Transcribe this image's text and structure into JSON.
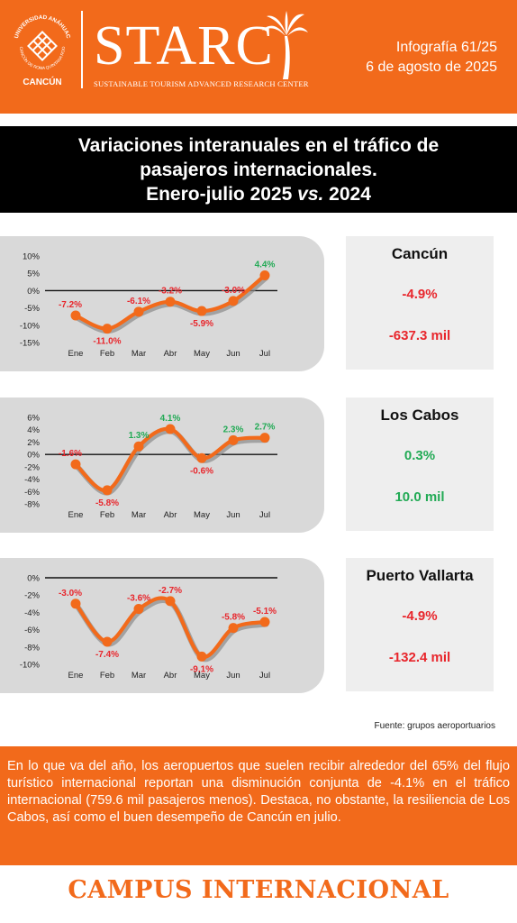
{
  "header": {
    "university_arc_text": "UNIVERSIDAD ANÁHUAC",
    "university_arc_text_bottom": "CANCÚN DE ROMA QUINTANA ROO",
    "university_city": "CANCÚN",
    "brand": "STARC",
    "brand_tagline": "SUSTAINABLE TOURISM ADVANCED RESEARCH CENTER",
    "infographic_number": "Infografía 61/25",
    "date": "6 de agosto de 2025"
  },
  "title": {
    "line1": "Variaciones interanuales en el tráfico de",
    "line2": "pasajeros internacionales.",
    "line3_prefix": "Enero-julio 2025 ",
    "line3_vs": "vs.",
    "line3_suffix": " 2024"
  },
  "colors": {
    "brand_orange": "#f26a1b",
    "line_orange": "#f26a1b",
    "line_shadow": "#8a8a8a",
    "negative_red": "#e8262c",
    "positive_green": "#22aa55",
    "panel_gray": "#d9d9d9",
    "stat_gray": "#eeeeee"
  },
  "chart_data": [
    {
      "type": "line",
      "name": "Cancún",
      "categories": [
        "Ene",
        "Feb",
        "Mar",
        "Abr",
        "May",
        "Jun",
        "Jul"
      ],
      "values": [
        -7.2,
        -11.0,
        -6.1,
        -3.2,
        -5.9,
        -3.0,
        4.4
      ],
      "data_labels": [
        "-7.2%",
        "-11.0%",
        "-6.1%",
        "-3.2%",
        "-5.9%",
        "-3.0%",
        "4.4%"
      ],
      "ylim": [
        -15,
        10
      ],
      "yticks": [
        10,
        5,
        0,
        -5,
        -10,
        -15
      ],
      "ytick_labels": [
        "10%",
        "5%",
        "0%",
        "-5%",
        "-10%",
        "-15%"
      ]
    },
    {
      "type": "line",
      "name": "Los Cabos",
      "categories": [
        "Ene",
        "Feb",
        "Mar",
        "Abr",
        "May",
        "Jun",
        "Jul"
      ],
      "values": [
        -1.6,
        -5.8,
        1.3,
        4.1,
        -0.6,
        2.3,
        2.7
      ],
      "data_labels": [
        "-1.6%",
        "-5.8%",
        "1.3%",
        "4.1%",
        "-0.6%",
        "2.3%",
        "2.7%"
      ],
      "ylim": [
        -8,
        6
      ],
      "yticks": [
        6,
        4,
        2,
        0,
        -2,
        -4,
        -6,
        -8
      ],
      "ytick_labels": [
        "6%",
        "4%",
        "2%",
        "0%",
        "-2%",
        "-4%",
        "-6%",
        "-8%"
      ]
    },
    {
      "type": "line",
      "name": "Puerto Vallarta",
      "categories": [
        "Ene",
        "Feb",
        "Mar",
        "Abr",
        "May",
        "Jun",
        "Jul"
      ],
      "values": [
        -3.0,
        -7.4,
        -3.6,
        -2.7,
        -9.1,
        -5.8,
        -5.1
      ],
      "data_labels": [
        "-3.0%",
        "-7.4%",
        "-3.6%",
        "-2.7%",
        "-9.1%",
        "-5.8%",
        "-5.1%"
      ],
      "ylim": [
        -10,
        0
      ],
      "yticks": [
        0,
        -2,
        -4,
        -6,
        -8,
        -10
      ],
      "ytick_labels": [
        "0%",
        "-2%",
        "-4%",
        "-6%",
        "-8%",
        "-10%"
      ]
    }
  ],
  "stats": [
    {
      "city": "Cancún",
      "pct": "-4.9%",
      "abs": "-637.3 mil",
      "trend": "negative"
    },
    {
      "city": "Los Cabos",
      "pct": "0.3%",
      "abs": "10.0 mil",
      "trend": "positive"
    },
    {
      "city": "Puerto Vallarta",
      "pct": "-4.9%",
      "abs": "-132.4 mil",
      "trend": "negative"
    }
  ],
  "source": "Fuente: grupos aeroportuarios",
  "summary": "En lo que va del año, los aeropuertos que suelen recibir alrededor del 65% del flujo turístico internacional reportan una disminución conjunta de -4.1% en el tráfico internacional (759.6 mil pasajeros menos). Destaca, no obstante, la resiliencia de Los Cabos, así como el buen desempeño de Cancún en julio.",
  "footer": "CAMPUS INTERNACIONAL"
}
